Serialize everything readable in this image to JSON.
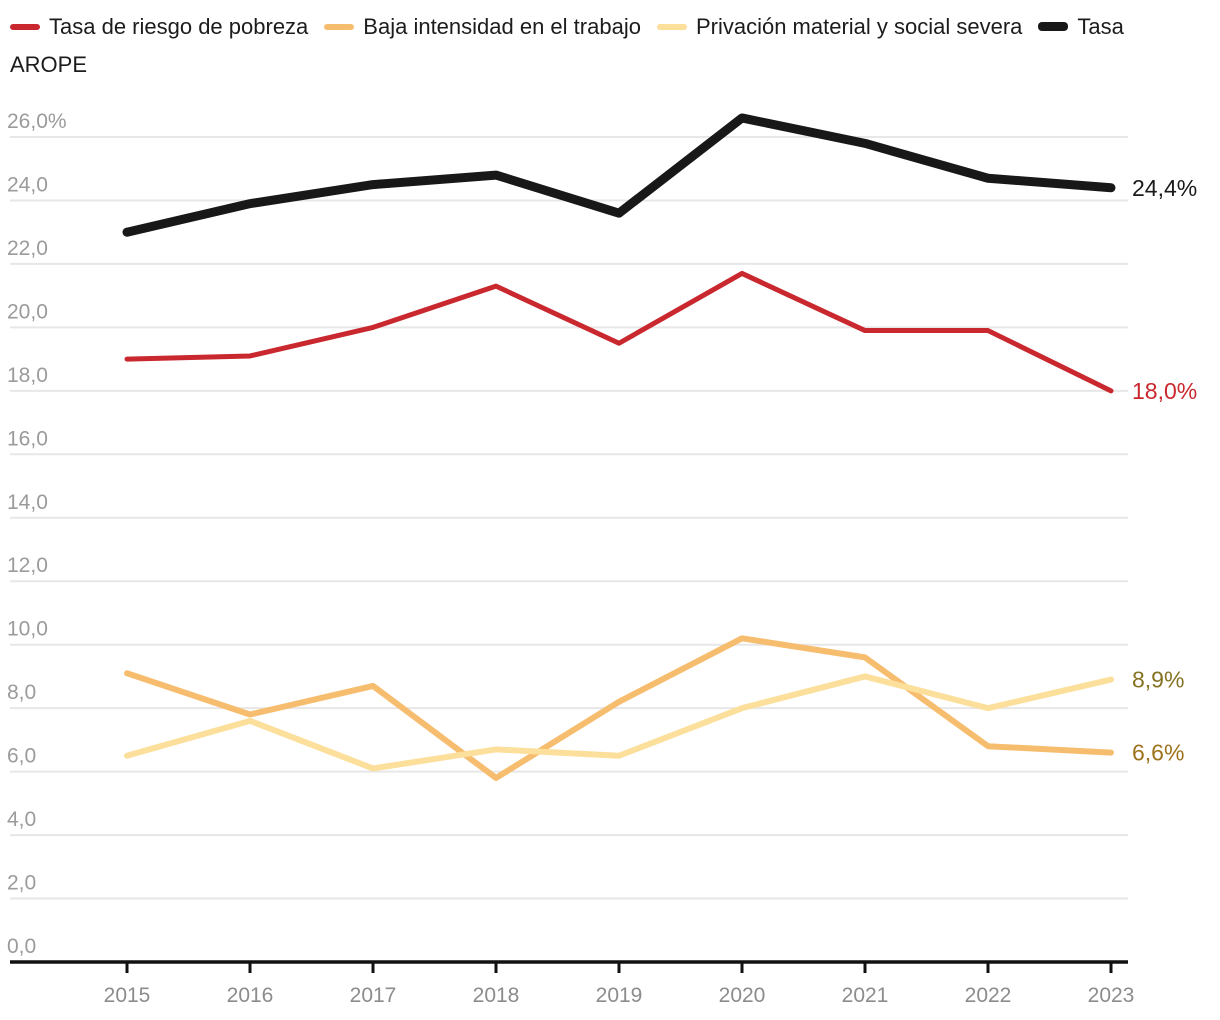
{
  "legend": {
    "position": "top",
    "items": [
      {
        "label": "Tasa de riesgo de pobreza",
        "color": "#c9282e",
        "thickness": 6
      },
      {
        "label": "Baja intensidad en el trabajo",
        "color": "#f7bd6f",
        "thickness": 6
      },
      {
        "label": "Privación material y social severa",
        "color": "#fcdf9b",
        "thickness": 6
      },
      {
        "label": "Tasa AROPE",
        "color": "#181818",
        "thickness": 9
      }
    ]
  },
  "chart_data": {
    "type": "line",
    "x": [
      2015,
      2016,
      2017,
      2018,
      2019,
      2020,
      2021,
      2022,
      2023
    ],
    "xtick_labels": [
      "2015",
      "2016",
      "2017",
      "2018",
      "2019",
      "2020",
      "2021",
      "2022",
      "2023"
    ],
    "series": [
      {
        "name": "Tasa de riesgo de pobreza",
        "color": "#c9282e",
        "line_width": 5,
        "values": [
          19.0,
          19.1,
          20.0,
          21.3,
          19.5,
          21.7,
          19.9,
          19.9,
          18.0
        ],
        "end_label": "18,0%",
        "end_label_color": "#c9282e"
      },
      {
        "name": "Baja intensidad en el trabajo",
        "color": "#f7bd6f",
        "line_width": 6,
        "values": [
          9.1,
          7.8,
          8.7,
          5.8,
          8.2,
          10.2,
          9.6,
          6.8,
          6.6
        ],
        "end_label": "6,6%",
        "end_label_color": "#9e721c"
      },
      {
        "name": "Privación material y social severa",
        "color": "#fcdf9b",
        "line_width": 6,
        "values": [
          6.5,
          7.6,
          6.1,
          6.7,
          6.5,
          8.0,
          9.0,
          8.0,
          8.9
        ],
        "end_label": "8,9%",
        "end_label_color": "#857223"
      },
      {
        "name": "Tasa AROPE",
        "color": "#181818",
        "line_width": 9,
        "values": [
          23.0,
          23.9,
          24.5,
          24.8,
          23.6,
          26.6,
          25.8,
          24.7,
          24.4
        ],
        "end_label": "24,4%",
        "end_label_color": "#1a1a1a"
      }
    ],
    "ylim": [
      0,
      26
    ],
    "ytick_step": 2,
    "ytick_labels": [
      "26,0%",
      "24,0",
      "22,0",
      "20,0",
      "18,0",
      "16,0",
      "14,0",
      "12,0",
      "10,0",
      "8,0",
      "6,0",
      "4,0",
      "2,0",
      "0,0"
    ],
    "grid": true,
    "legend_position": "top",
    "title": "",
    "xlabel": "",
    "ylabel": ""
  },
  "colors": {
    "background": "#ffffff",
    "gridline": "#e7e7e7",
    "axis_line": "#111111",
    "y_tick_label": "#9b9b9b",
    "x_tick_label": "#8c8c8c",
    "legend_text": "#1c1c1c"
  }
}
